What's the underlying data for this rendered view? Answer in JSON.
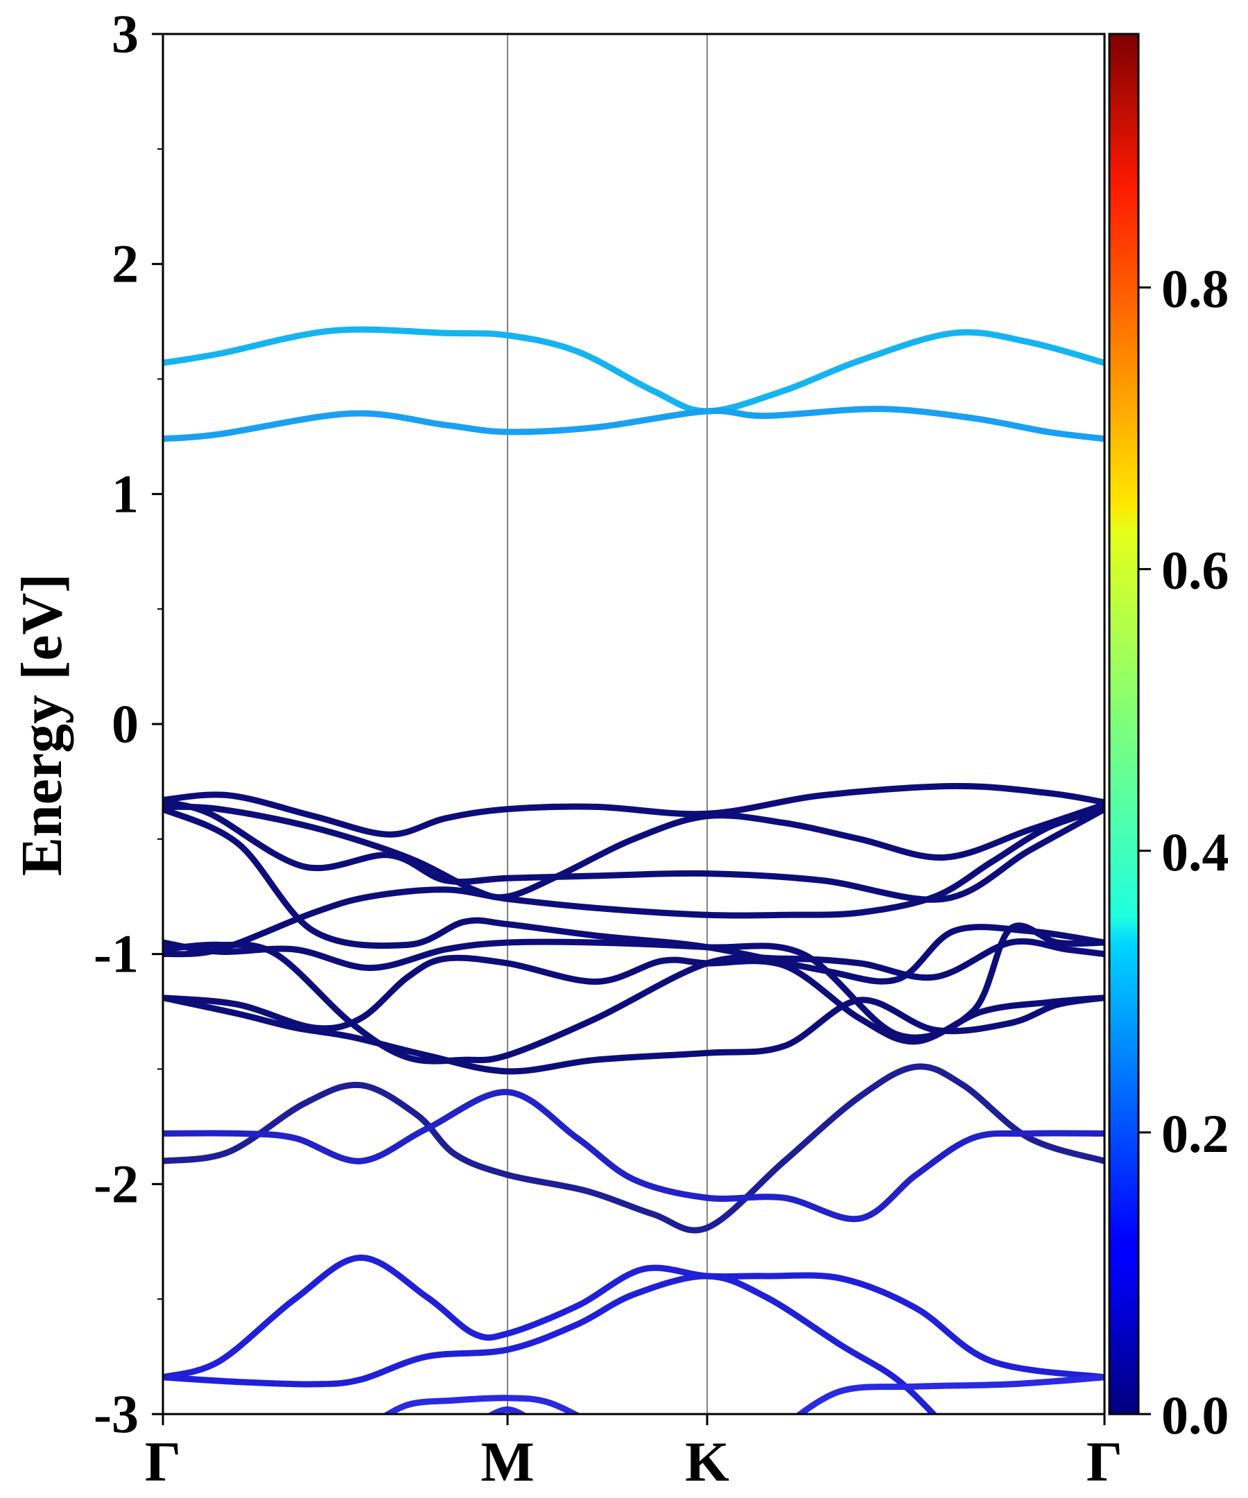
{
  "chart_data": {
    "type": "line",
    "title": "",
    "xlabel": "",
    "ylabel": "Energy [eV]",
    "ylim": [
      -3,
      3
    ],
    "y_ticks": [
      3,
      2,
      1,
      0,
      -1,
      -2,
      -3
    ],
    "y_tick_labels": [
      "3",
      "2",
      "1",
      "0",
      "-1",
      "-2",
      "-3"
    ],
    "x_ticks": [
      {
        "label": "Γ",
        "pos": 0
      },
      {
        "label": "M",
        "pos": 0.366
      },
      {
        "label": "K",
        "pos": 0.578
      },
      {
        "label": "Γ",
        "pos": 1
      }
    ],
    "colorbar": {
      "colormap": "jet",
      "range": [
        0,
        0.98
      ],
      "ticks": [
        0.0,
        0.2,
        0.4,
        0.6,
        0.8
      ],
      "tick_labels": [
        "0.0",
        "0.2",
        "0.4",
        "0.6",
        "0.8"
      ]
    },
    "series": [
      {
        "color": "#15b4f0",
        "x": [
          0,
          0.06,
          0.18,
          0.3,
          0.366,
          0.44,
          0.52,
          0.578,
          0.66,
          0.74,
          0.84,
          0.92,
          1.0
        ],
        "y": [
          1.57,
          1.61,
          1.71,
          1.7,
          1.69,
          1.62,
          1.45,
          1.36,
          1.45,
          1.58,
          1.7,
          1.66,
          1.57
        ]
      },
      {
        "color": "#1aa0f0",
        "x": [
          0,
          0.06,
          0.2,
          0.3,
          0.366,
          0.46,
          0.578,
          0.64,
          0.76,
          0.86,
          0.94,
          1.0
        ],
        "y": [
          1.24,
          1.26,
          1.35,
          1.3,
          1.27,
          1.29,
          1.36,
          1.34,
          1.37,
          1.33,
          1.27,
          1.24
        ]
      },
      {
        "color": "#0d0d7a",
        "x": [
          0,
          0.07,
          0.16,
          0.24,
          0.3,
          0.366,
          0.46,
          0.578,
          0.7,
          0.84,
          0.94,
          1.0
        ],
        "y": [
          -0.33,
          -0.31,
          -0.4,
          -0.48,
          -0.41,
          -0.37,
          -0.36,
          -0.39,
          -0.31,
          -0.27,
          -0.3,
          -0.34
        ]
      },
      {
        "color": "#0d0d7a",
        "x": [
          0,
          0.05,
          0.15,
          0.24,
          0.3,
          0.366,
          0.46,
          0.578,
          0.7,
          0.83,
          0.92,
          1.0
        ],
        "y": [
          -0.34,
          -0.39,
          -0.62,
          -0.57,
          -0.68,
          -0.67,
          -0.66,
          -0.65,
          -0.68,
          -0.76,
          -0.55,
          -0.37
        ]
      },
      {
        "color": "#0d0d7a",
        "x": [
          0,
          0.06,
          0.16,
          0.26,
          0.33,
          0.366,
          0.42,
          0.5,
          0.578,
          0.66,
          0.74,
          0.83,
          0.92,
          1.0
        ],
        "y": [
          -0.36,
          -0.37,
          -0.45,
          -0.58,
          -0.72,
          -0.75,
          -0.66,
          -0.5,
          -0.4,
          -0.43,
          -0.5,
          -0.58,
          -0.46,
          -0.35
        ]
      },
      {
        "color": "#0d0d7a",
        "x": [
          0,
          0.08,
          0.16,
          0.26,
          0.32,
          0.366,
          0.46,
          0.578,
          0.7,
          0.78,
          0.84,
          0.92,
          1.0
        ],
        "y": [
          -0.37,
          -0.52,
          -0.9,
          -0.96,
          -0.86,
          -0.87,
          -0.92,
          -0.97,
          -1.07,
          -1.11,
          -0.9,
          -0.9,
          -0.95
        ]
      },
      {
        "color": "#0d0d7a",
        "x": [
          0,
          0.06,
          0.16,
          0.22,
          0.3,
          0.366,
          0.46,
          0.578,
          0.66,
          0.74,
          0.82,
          0.88,
          0.94,
          1.0
        ],
        "y": [
          -1.0,
          -0.98,
          -0.82,
          -0.75,
          -0.72,
          -0.76,
          -0.8,
          -0.83,
          -0.83,
          -0.82,
          -0.75,
          -0.6,
          -0.45,
          -0.37
        ]
      },
      {
        "color": "#0d0d7a",
        "x": [
          0,
          0.06,
          0.12,
          0.2,
          0.26,
          0.32,
          0.366,
          0.46,
          0.578,
          0.66,
          0.74,
          0.82,
          0.9,
          0.96,
          1.0
        ],
        "y": [
          -0.98,
          -0.96,
          -1.0,
          -1.3,
          -1.45,
          -1.46,
          -1.44,
          -1.28,
          -1.04,
          -1.02,
          -1.04,
          -1.1,
          -0.95,
          -0.98,
          -1.0
        ]
      },
      {
        "color": "#0d0d7a",
        "x": [
          0,
          0.06,
          0.14,
          0.22,
          0.3,
          0.366,
          0.46,
          0.578,
          0.68,
          0.78,
          0.86,
          0.9,
          0.95,
          1.0
        ],
        "y": [
          -0.95,
          -0.99,
          -0.98,
          -1.06,
          -0.98,
          -0.95,
          -0.95,
          -0.97,
          -1.0,
          -1.35,
          -1.25,
          -0.89,
          -0.95,
          -0.95
        ]
      },
      {
        "color": "#0d0d7a",
        "x": [
          0,
          0.08,
          0.16,
          0.21,
          0.26,
          0.3,
          0.366,
          0.46,
          0.53,
          0.578,
          0.66,
          0.74,
          0.8,
          0.87,
          0.94,
          1.0
        ],
        "y": [
          -1.19,
          -1.22,
          -1.32,
          -1.28,
          -1.1,
          -1.02,
          -1.04,
          -1.12,
          -1.03,
          -1.04,
          -1.05,
          -1.28,
          -1.38,
          -1.25,
          -1.21,
          -1.19
        ]
      },
      {
        "color": "#0d0d7a",
        "x": [
          0,
          0.08,
          0.14,
          0.2,
          0.28,
          0.366,
          0.46,
          0.578,
          0.66,
          0.74,
          0.82,
          0.9,
          0.95,
          1.0
        ],
        "y": [
          -1.19,
          -1.26,
          -1.32,
          -1.36,
          -1.44,
          -1.51,
          -1.46,
          -1.43,
          -1.4,
          -1.2,
          -1.33,
          -1.3,
          -1.22,
          -1.19
        ]
      },
      {
        "color": "#1e1e95",
        "x": [
          0,
          0.07,
          0.15,
          0.21,
          0.27,
          0.31,
          0.366,
          0.45,
          0.52,
          0.578,
          0.66,
          0.74,
          0.8,
          0.85,
          0.92,
          1.0
        ],
        "y": [
          -1.9,
          -1.86,
          -1.65,
          -1.57,
          -1.7,
          -1.87,
          -1.96,
          -2.03,
          -2.13,
          -2.19,
          -1.9,
          -1.62,
          -1.49,
          -1.57,
          -1.8,
          -1.9
        ]
      },
      {
        "color": "#2222c8",
        "x": [
          0,
          0.08,
          0.14,
          0.21,
          0.28,
          0.366,
          0.44,
          0.5,
          0.578,
          0.66,
          0.74,
          0.8,
          0.86,
          0.92,
          1.0
        ],
        "y": [
          -1.78,
          -1.78,
          -1.8,
          -1.9,
          -1.76,
          -1.6,
          -1.8,
          -1.98,
          -2.06,
          -2.06,
          -2.15,
          -1.96,
          -1.8,
          -1.78,
          -1.78
        ]
      },
      {
        "color": "#2020d8",
        "x": [
          0,
          0.06,
          0.14,
          0.21,
          0.28,
          0.33,
          0.366,
          0.44,
          0.51,
          0.578,
          0.64,
          0.72,
          0.8,
          0.88,
          1.0
        ],
        "y": [
          -2.84,
          -2.77,
          -2.5,
          -2.32,
          -2.49,
          -2.65,
          -2.65,
          -2.53,
          -2.37,
          -2.4,
          -2.4,
          -2.41,
          -2.54,
          -2.77,
          -2.84
        ]
      },
      {
        "color": "#2020d8",
        "x": [
          0,
          0.08,
          0.16,
          0.21,
          0.28,
          0.366,
          0.44,
          0.5,
          0.578,
          0.64,
          0.72,
          0.78,
          0.83
        ],
        "y": [
          -2.84,
          -2.86,
          -2.87,
          -2.85,
          -2.75,
          -2.72,
          -2.61,
          -2.48,
          -2.4,
          -2.49,
          -2.7,
          -2.85,
          -3.05
        ]
      },
      {
        "color": "#2a2ae0",
        "x": [
          0.22,
          0.26,
          0.31,
          0.366,
          0.41,
          0.46
        ],
        "y": [
          -3.05,
          -2.96,
          -2.94,
          -2.93,
          -2.95,
          -3.05
        ]
      },
      {
        "color": "#2a2ae0",
        "x": [
          0.33,
          0.366,
          0.4
        ],
        "y": [
          -3.05,
          -2.98,
          -3.05
        ]
      },
      {
        "color": "#2a2ae0",
        "x": [
          0.66,
          0.72,
          0.8,
          0.9,
          1.0
        ],
        "y": [
          -3.05,
          -2.9,
          -2.88,
          -2.87,
          -2.84
        ]
      }
    ]
  }
}
